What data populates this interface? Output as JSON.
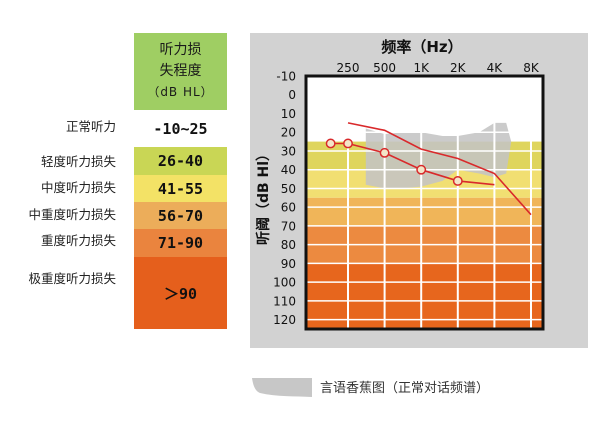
{
  "legend": {
    "header": [
      "听力损",
      "失程度",
      "（dB HL）"
    ],
    "rows": [
      {
        "label": "正常听力",
        "range": "-10~25",
        "color": "#ffffff"
      },
      {
        "label": "轻度听力损失",
        "range": "26-40",
        "color": "#c9d655"
      },
      {
        "label": "中度听力损失",
        "range": "41-55",
        "color": "#f3e266"
      },
      {
        "label": "中重度听力损失",
        "range": "56-70",
        "color": "#ecad5a"
      },
      {
        "label": "重度听力损失",
        "range": "71-90",
        "color": "#ea843e"
      },
      {
        "label": "极重度听力损失",
        "range": "＞90",
        "color": "#e55f1c"
      }
    ]
  },
  "chart_data": {
    "type": "line",
    "title": "频率（Hz）",
    "ylabel": "听阈（dB Hl）",
    "x_ticks": [
      "250",
      "500",
      "1K",
      "2K",
      "4K",
      "8K"
    ],
    "y_ticks": [
      -10,
      0,
      10,
      20,
      30,
      40,
      50,
      60,
      70,
      80,
      90,
      100,
      110,
      120
    ],
    "y_inverted": true,
    "ylim": [
      -10,
      125
    ],
    "bands": [
      {
        "from": 25,
        "to": 40,
        "color": "#dfd55d"
      },
      {
        "from": 40,
        "to": 55,
        "color": "#f1df72"
      },
      {
        "from": 55,
        "to": 70,
        "color": "#f0b559"
      },
      {
        "from": 70,
        "to": 90,
        "color": "#ec8a40"
      },
      {
        "from": 90,
        "to": 125,
        "color": "#e7661d"
      }
    ],
    "speech_banana": {
      "color": "#c4c4c4",
      "upper": [
        [
          350,
          18
        ],
        [
          500,
          21
        ],
        [
          700,
          20
        ],
        [
          1000,
          20
        ],
        [
          1500,
          22
        ],
        [
          2000,
          22
        ],
        [
          3000,
          20
        ],
        [
          4000,
          15
        ],
        [
          5000,
          15
        ],
        [
          5500,
          25
        ]
      ],
      "lower": [
        [
          5500,
          25
        ],
        [
          5000,
          42
        ],
        [
          4000,
          44
        ],
        [
          3000,
          42
        ],
        [
          2000,
          40
        ],
        [
          1500,
          46
        ],
        [
          1000,
          49
        ],
        [
          700,
          50
        ],
        [
          500,
          50
        ],
        [
          350,
          48
        ]
      ]
    },
    "series": [
      {
        "color": "#d9292b",
        "x": [
          180,
          250,
          500,
          1000,
          2000,
          4000
        ],
        "y": [
          26,
          26,
          31,
          40,
          46,
          48
        ],
        "markers": true,
        "marker_x": [
          180,
          250,
          500,
          1000,
          2000
        ]
      },
      {
        "color": "#d9292b",
        "x": [
          250,
          500,
          1000,
          2000,
          4000,
          8000
        ],
        "y": [
          15,
          19,
          29,
          34,
          42,
          64
        ],
        "markers": false
      }
    ]
  },
  "key": {
    "text": "言语香蕉图（正常对话频谱）"
  }
}
